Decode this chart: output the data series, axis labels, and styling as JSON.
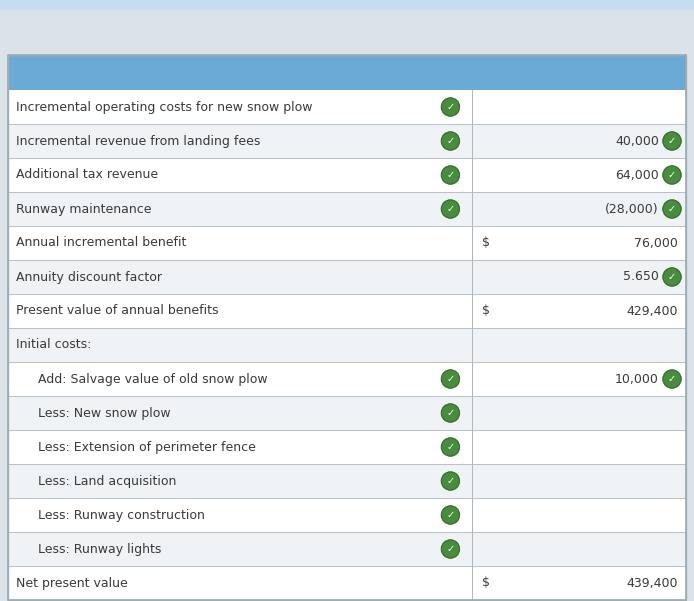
{
  "header_color": "#6aaad4",
  "top_stripe_color": "#c5ddf0",
  "row_bg_colors": [
    "#ffffff",
    "#f0f3f5"
  ],
  "border_color": "#b0b8be",
  "text_color": "#3a3a3a",
  "check_color": "#4a8c3f",
  "check_border": "#3a7030",
  "bg_color": "#dce3e8",
  "rows": [
    {
      "label": "Incremental operating costs for new snow plow",
      "indent": false,
      "check1": true,
      "dollar": false,
      "value": "",
      "check2": false
    },
    {
      "label": "Incremental revenue from landing fees",
      "indent": false,
      "check1": true,
      "dollar": false,
      "value": "40,000",
      "check2": true
    },
    {
      "label": "Additional tax revenue",
      "indent": false,
      "check1": true,
      "dollar": false,
      "value": "64,000",
      "check2": true
    },
    {
      "label": "Runway maintenance",
      "indent": false,
      "check1": true,
      "dollar": false,
      "value": "(28,000)",
      "check2": true
    },
    {
      "label": "Annual incremental benefit",
      "indent": false,
      "check1": false,
      "dollar": true,
      "value": "76,000",
      "check2": false
    },
    {
      "label": "Annuity discount factor",
      "indent": false,
      "check1": false,
      "dollar": false,
      "value": "5.650",
      "check2": true
    },
    {
      "label": "Present value of annual benefits",
      "indent": false,
      "check1": false,
      "dollar": true,
      "value": "429,400",
      "check2": false
    },
    {
      "label": "Initial costs:",
      "indent": false,
      "check1": false,
      "dollar": false,
      "value": "",
      "check2": false
    },
    {
      "label": "Add: Salvage value of old snow plow",
      "indent": true,
      "check1": true,
      "dollar": false,
      "value": "10,000",
      "check2": true
    },
    {
      "label": "Less: New snow plow",
      "indent": true,
      "check1": true,
      "dollar": false,
      "value": "",
      "check2": false
    },
    {
      "label": "Less: Extension of perimeter fence",
      "indent": true,
      "check1": true,
      "dollar": false,
      "value": "",
      "check2": false
    },
    {
      "label": "Less: Land acquisition",
      "indent": true,
      "check1": true,
      "dollar": false,
      "value": "",
      "check2": false
    },
    {
      "label": "Less: Runway construction",
      "indent": true,
      "check1": true,
      "dollar": false,
      "value": "",
      "check2": false
    },
    {
      "label": "Less: Runway lights",
      "indent": true,
      "check1": true,
      "dollar": false,
      "value": "",
      "check2": false
    },
    {
      "label": "Net present value",
      "indent": false,
      "check1": false,
      "dollar": true,
      "value": "439,400",
      "check2": false
    }
  ],
  "figsize": [
    6.94,
    6.01
  ],
  "dpi": 100
}
